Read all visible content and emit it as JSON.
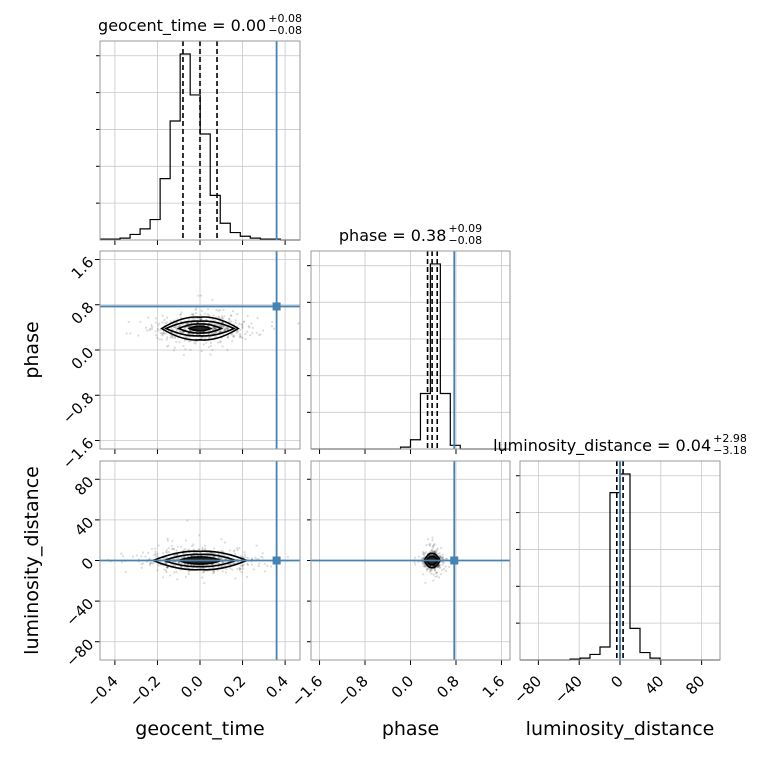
{
  "chart_data": {
    "type": "corner",
    "parameters": [
      "geocent_time",
      "phase",
      "luminosity_distance"
    ],
    "axis_labels": [
      "geocent_time",
      "phase",
      "luminosity_distance"
    ],
    "ranges": {
      "geocent_time": [
        -0.47,
        0.47
      ],
      "phase": [
        -1.75,
        1.75
      ],
      "luminosity_distance": [
        -98,
        98
      ]
    },
    "tick_values": {
      "geocent_time": [
        -0.4,
        -0.2,
        0.0,
        0.2,
        0.4
      ],
      "phase": [
        -1.6,
        -0.8,
        0.0,
        0.8,
        1.6
      ],
      "luminosity_distance": [
        -80,
        -40,
        0,
        40,
        80
      ]
    },
    "tick_labels": {
      "geocent_time": [
        "−0.4",
        "−0.2",
        "0.0",
        "0.2",
        "0.4"
      ],
      "phase": [
        "−1.6",
        "−0.8",
        "0.0",
        "0.8",
        "1.6"
      ],
      "luminosity_distance": [
        "−80",
        "−40",
        "0",
        "40",
        "80"
      ]
    },
    "titles": [
      {
        "param": "geocent_time",
        "text": "geocent_time = 0.00",
        "sup": "+0.08",
        "sub": "−0.08"
      },
      {
        "param": "phase",
        "text": "phase = 0.38",
        "sup": "+0.09",
        "sub": "−0.08"
      },
      {
        "param": "luminosity_distance",
        "text": "luminosity_distance = 0.04",
        "sup": "+2.98",
        "sub": "−3.18"
      }
    ],
    "quantiles": {
      "geocent_time": [
        -0.08,
        0.0,
        0.08
      ],
      "phase": [
        0.3,
        0.38,
        0.47
      ],
      "luminosity_distance": [
        -3.14,
        0.04,
        3.02
      ]
    },
    "truths": {
      "geocent_time": 0.36,
      "phase": 0.77,
      "luminosity_distance": 0.0
    },
    "histograms": {
      "geocent_time": {
        "edges": [
          -0.47,
          -0.4229,
          -0.3758,
          -0.3287,
          -0.2816,
          -0.2345,
          -0.1874,
          -0.1403,
          -0.0932,
          -0.0461,
          0.001,
          0.0481,
          0.0952,
          0.1423,
          0.1894,
          0.2365,
          0.2836,
          0.3307,
          0.3778,
          0.4249,
          0.47
        ],
        "values": [
          0.005,
          0.005,
          0.01,
          0.03,
          0.06,
          0.11,
          0.33,
          0.64,
          1.0,
          0.78,
          0.57,
          0.24,
          0.09,
          0.04,
          0.02,
          0.01,
          0.005,
          0.005,
          0.0,
          0.0
        ]
      },
      "phase": {
        "edges": [
          -1.75,
          -1.575,
          -1.4,
          -1.225,
          -1.05,
          -0.875,
          -0.7,
          -0.525,
          -0.35,
          -0.175,
          0.0,
          0.175,
          0.35,
          0.525,
          0.7,
          0.875,
          1.05,
          1.225,
          1.4,
          1.575,
          1.75
        ],
        "values": [
          0,
          0,
          0,
          0,
          0,
          0,
          0,
          0,
          0,
          0.01,
          0.05,
          0.3,
          1.0,
          0.3,
          0.02,
          0,
          0,
          0,
          0,
          0
        ]
      },
      "luminosity_distance": {
        "edges": [
          -98,
          -88.2,
          -78.4,
          -68.6,
          -58.8,
          -49,
          -39.2,
          -29.4,
          -19.6,
          -9.8,
          0,
          9.8,
          19.6,
          29.4,
          39.2,
          49,
          58.8,
          68.6,
          78.4,
          88.2,
          98
        ],
        "values": [
          0,
          0,
          0,
          0,
          0,
          0.005,
          0.01,
          0.03,
          0.07,
          0.9,
          1.0,
          0.17,
          0.04,
          0.01,
          0,
          0,
          0,
          0,
          0,
          0
        ]
      }
    },
    "pairs": [
      {
        "x": "geocent_time",
        "y": "phase",
        "center": [
          0.0,
          0.38
        ],
        "contour_halfwidths": [
          [
            0.18,
            0.2
          ],
          [
            0.16,
            0.13
          ],
          [
            0.1,
            0.08
          ],
          [
            0.05,
            0.04
          ]
        ]
      },
      {
        "x": "geocent_time",
        "y": "luminosity_distance",
        "center": [
          0.0,
          0.0
        ],
        "contour_halfwidths": [
          [
            0.22,
            9.0
          ],
          [
            0.17,
            6.0
          ],
          [
            0.1,
            3.5
          ]
        ]
      },
      {
        "x": "phase",
        "y": "luminosity_distance",
        "center": [
          0.38,
          0.0
        ],
        "contour_halfwidths": [
          [
            0.14,
            7.0
          ],
          [
            0.1,
            4.0
          ]
        ]
      }
    ],
    "colors": {
      "truth": "#4682b4",
      "hist": "#000000",
      "scatter": "#000000"
    }
  }
}
